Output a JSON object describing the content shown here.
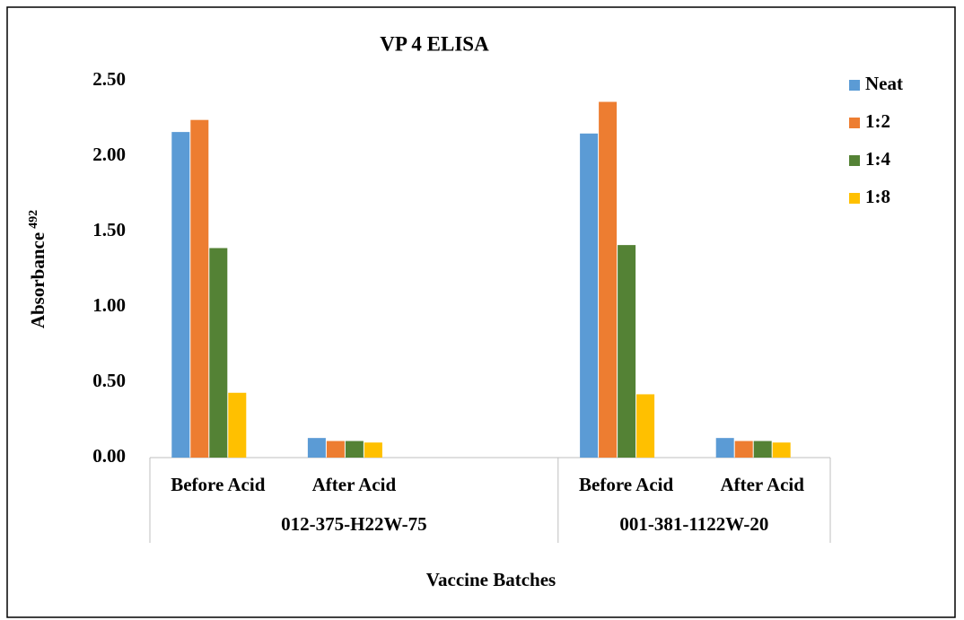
{
  "chart_data": {
    "type": "bar",
    "title": "VP 4 ELISA",
    "y_label": "Absorbance",
    "y_label_sub": "492",
    "x_label": "Vaccine Batches",
    "groups": [
      {
        "name": "012-375-H22W-75",
        "categories": [
          "Before Acid",
          "After Acid",
          null
        ]
      },
      {
        "name": "001-381-1122W-20",
        "categories": [
          "Before Acid",
          "After Acid"
        ]
      }
    ],
    "series": [
      {
        "name": "Neat",
        "color": "#5b9bd5",
        "values": [
          2.16,
          0.13,
          null,
          2.15,
          0.13
        ]
      },
      {
        "name": "1:2",
        "color": "#ed7d31",
        "values": [
          2.24,
          0.11,
          null,
          2.36,
          0.11
        ]
      },
      {
        "name": "1:4",
        "color": "#548235",
        "values": [
          1.39,
          0.11,
          null,
          1.41,
          0.11
        ]
      },
      {
        "name": "1:8",
        "color": "#ffc000",
        "values": [
          0.43,
          0.1,
          null,
          0.42,
          0.1
        ]
      }
    ],
    "ylim": [
      0,
      2.5
    ],
    "yticks": [
      {
        "value": 0,
        "label": "0.00"
      },
      {
        "value": 0.5,
        "label": "0.50"
      },
      {
        "value": 1,
        "label": "1.00"
      },
      {
        "value": 1.5,
        "label": "1.50"
      },
      {
        "value": 2,
        "label": "2.00"
      },
      {
        "value": 2.5,
        "label": "2.50"
      }
    ],
    "grid": false,
    "legend": "right"
  }
}
